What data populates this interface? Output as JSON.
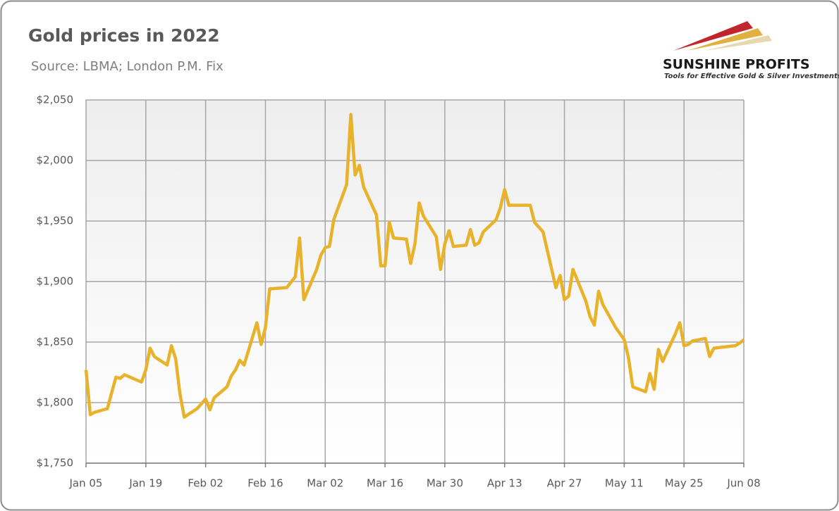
{
  "chart_data": {
    "type": "line",
    "title": "Gold prices in 2022",
    "subtitle": "Source: LBMA; London P.M. Fix",
    "x": [
      0,
      1,
      2,
      5,
      7,
      8,
      9,
      13,
      14,
      15,
      16,
      19,
      20,
      21,
      22,
      23,
      26,
      28,
      29,
      30,
      33,
      34,
      35,
      36,
      37,
      40,
      41,
      42,
      43,
      47,
      49,
      50,
      51,
      54,
      55,
      56,
      57,
      58,
      61,
      62,
      63,
      64,
      65,
      68,
      69,
      70,
      71,
      72,
      75,
      76,
      77,
      78,
      79,
      82,
      83,
      84,
      85,
      86,
      89,
      90,
      91,
      92,
      93,
      96,
      97,
      98,
      99,
      104,
      105,
      106,
      107,
      110,
      111,
      112,
      113,
      114,
      117,
      118,
      119,
      120,
      121,
      124,
      125,
      126,
      127,
      128,
      131,
      132,
      133,
      134,
      135,
      138,
      139,
      140,
      141,
      142,
      145,
      146,
      147,
      152,
      153,
      154
    ],
    "series": [
      {
        "name": "Gold price",
        "color": "#e8b22a",
        "values": [
          1827,
          1790,
          1792,
          1795,
          1821,
          1820,
          1823,
          1817,
          1827,
          1845,
          1838,
          1831,
          1847,
          1836,
          1807,
          1788,
          1795,
          1803,
          1794,
          1804,
          1813,
          1822,
          1827,
          1835,
          1831,
          1866,
          1848,
          1862,
          1894,
          1895,
          1904,
          1936,
          1885,
          1910,
          1922,
          1928,
          1929,
          1951,
          1980,
          2038,
          1988,
          1996,
          1978,
          1955,
          1913,
          1913,
          1949,
          1936,
          1935,
          1915,
          1931,
          1965,
          1954,
          1937,
          1910,
          1931,
          1942,
          1929,
          1930,
          1943,
          1930,
          1932,
          1941,
          1951,
          1961,
          1976,
          1963,
          1963,
          1949,
          1945,
          1941,
          1895,
          1905,
          1885,
          1888,
          1910,
          1884,
          1871,
          1864,
          1892,
          1881,
          1862,
          1857,
          1852,
          1837,
          1813,
          1809,
          1824,
          1811,
          1844,
          1834,
          1857,
          1866,
          1847,
          1848,
          1851,
          1853,
          1838,
          1845,
          1847,
          1849,
          1852
        ]
      }
    ],
    "xlim": [
      0,
      154
    ],
    "xticks": [
      {
        "value": 0,
        "label": "Jan 05"
      },
      {
        "value": 14,
        "label": "Jan 19"
      },
      {
        "value": 28,
        "label": "Feb 02"
      },
      {
        "value": 42,
        "label": "Feb 16"
      },
      {
        "value": 56,
        "label": "Mar 02"
      },
      {
        "value": 70,
        "label": "Mar 16"
      },
      {
        "value": 84,
        "label": "Mar 30"
      },
      {
        "value": 98,
        "label": "Apr 13"
      },
      {
        "value": 112,
        "label": "Apr 27"
      },
      {
        "value": 126,
        "label": "May 11"
      },
      {
        "value": 140,
        "label": "May 25"
      },
      {
        "value": 154,
        "label": "Jun 08"
      }
    ],
    "ylim": [
      1750,
      2050
    ],
    "yticks": [
      {
        "value": 1750,
        "label": "$1,750"
      },
      {
        "value": 1800,
        "label": "$1,800"
      },
      {
        "value": 1850,
        "label": "$1,850"
      },
      {
        "value": 1900,
        "label": "$1,900"
      },
      {
        "value": 1950,
        "label": "$1,950"
      },
      {
        "value": 2000,
        "label": "$2,000"
      },
      {
        "value": 2050,
        "label": "$2,050"
      }
    ],
    "grid": true
  },
  "logo": {
    "name": "SUNSHINE PROFITS",
    "tagline": "Tools for Effective Gold & Silver Investments"
  }
}
